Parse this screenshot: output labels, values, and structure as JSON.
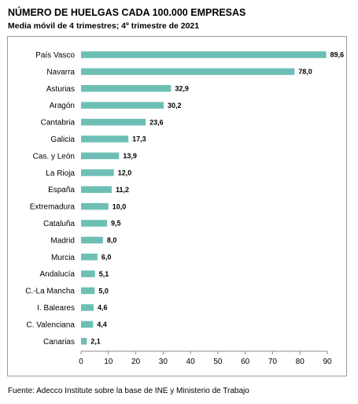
{
  "chart_data": {
    "type": "bar",
    "orientation": "horizontal",
    "title": "NÚMERO DE HUELGAS CADA 100.000 EMPRESAS",
    "subtitle": "Media móvil de 4 trimestres; 4º trimestre de 2021",
    "categories": [
      "País Vasco",
      "Navarra",
      "Asturias",
      "Aragón",
      "Cantabria",
      "Galicia",
      "Cas. y León",
      "La Rioja",
      "España",
      "Extremadura",
      "Cataluña",
      "Madrid",
      "Murcia",
      "Andalucía",
      "C.-La Mancha",
      "I. Baleares",
      "C. Valenciana",
      "Canarias"
    ],
    "values": [
      89.6,
      78.0,
      32.9,
      30.2,
      23.6,
      17.3,
      13.9,
      12.0,
      11.2,
      10.0,
      9.5,
      8.0,
      6.0,
      5.1,
      5.0,
      4.6,
      4.4,
      2.1
    ],
    "value_labels": [
      "89,6",
      "78,0",
      "32,9",
      "30,2",
      "23,6",
      "17,3",
      "13,9",
      "12,0",
      "11,2",
      "10,0",
      "9,5",
      "8,0",
      "6,0",
      "5,1",
      "5,0",
      "4,6",
      "4,4",
      "2,1"
    ],
    "xlim": [
      0,
      90
    ],
    "xticks": [
      "0",
      "10",
      "20",
      "30",
      "40",
      "50",
      "60",
      "70",
      "80",
      "90"
    ],
    "grid": false,
    "bar_color": "#6dbfb5",
    "source": "Fuente: Adecco Institute sobre la base de INE y Ministerio de Trabajo"
  }
}
